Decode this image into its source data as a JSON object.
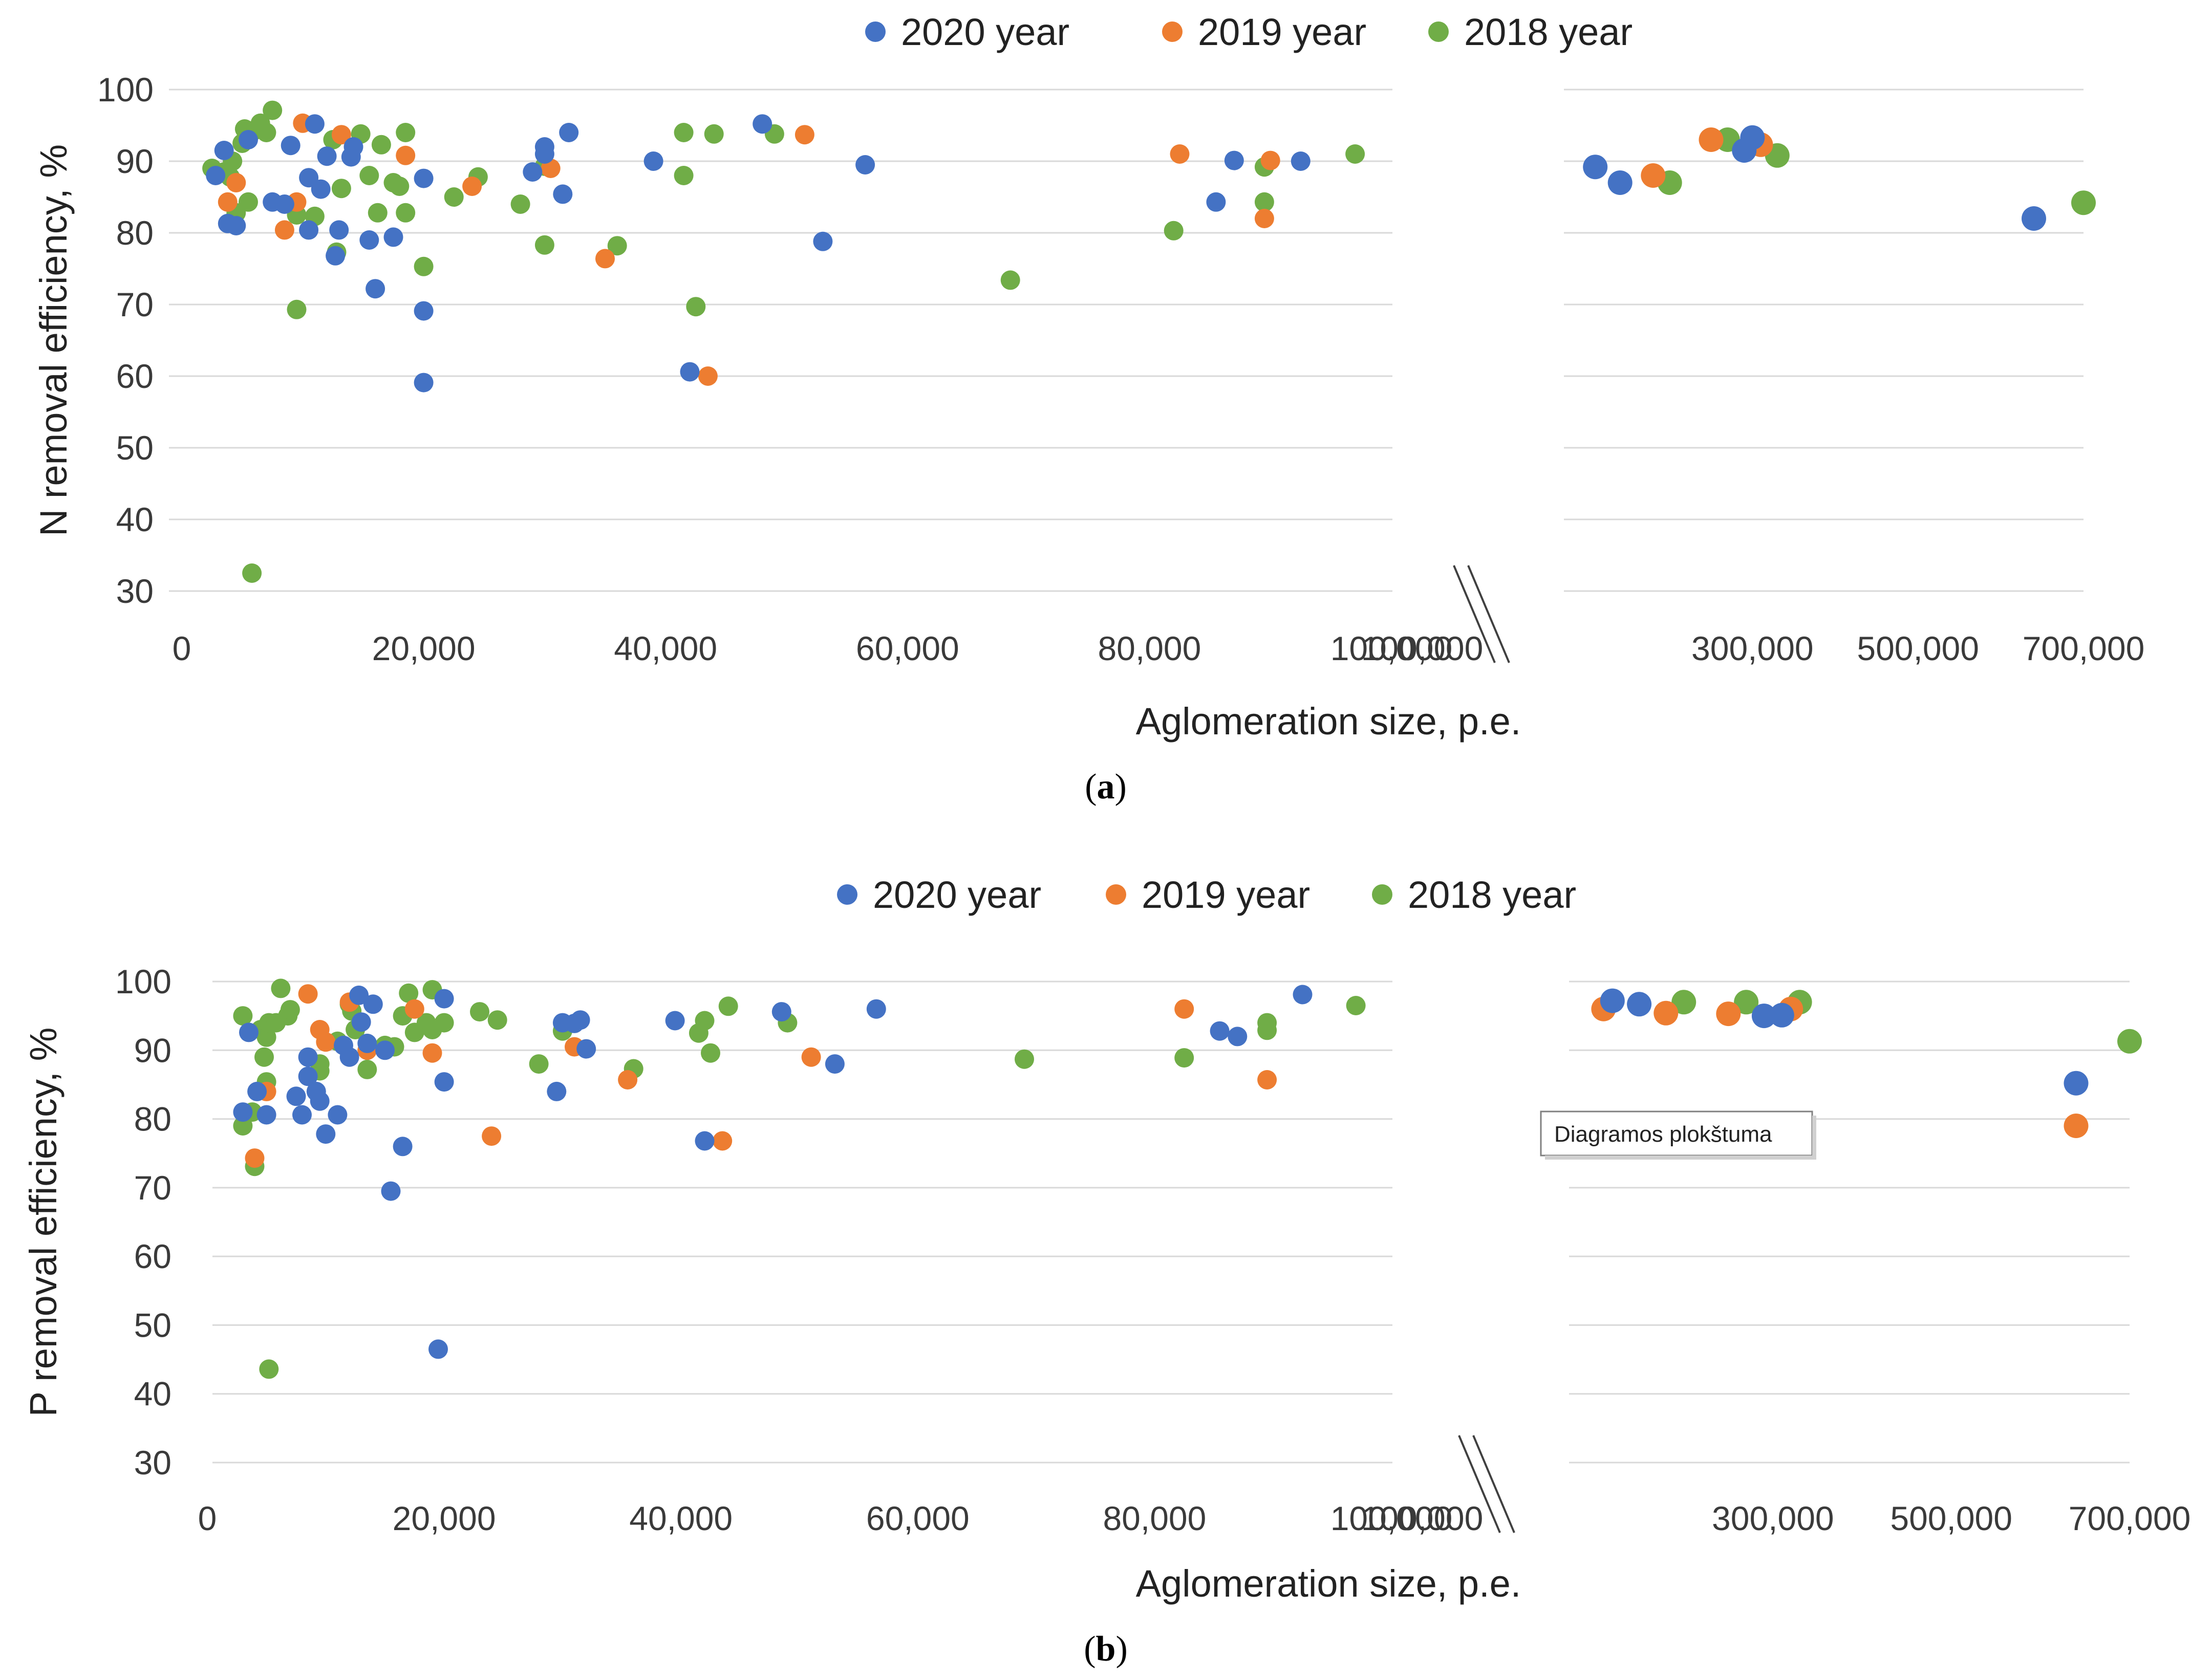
{
  "chart_data": [
    {
      "type": "scatter",
      "panel": "a",
      "caption": "a",
      "ylabel": "N removal efficiency, %",
      "xlabel": "Aglomeration size, p.e.",
      "ylim": [
        30,
        100
      ],
      "yticks": [
        "100",
        "90",
        "80",
        "70",
        "60",
        "50",
        "40",
        "30"
      ],
      "left_xlim": [
        0,
        100000
      ],
      "left_xticks": [
        "0",
        "20,000",
        "40,000",
        "60,000",
        "80,000",
        "100,000"
      ],
      "right_xlim": [
        100000,
        700000
      ],
      "right_xticks": [
        "100,000",
        "300,000",
        "500,000",
        "700,000"
      ],
      "legend": [
        "2020 year",
        "2019 year",
        "2018 year"
      ],
      "series": [
        {
          "name": "2020 year",
          "color": "#4472C4",
          "points": [
            [
              2800,
              88
            ],
            [
              3500,
              91.5
            ],
            [
              3800,
              81.3
            ],
            [
              4500,
              81
            ],
            [
              5500,
              93
            ],
            [
              7500,
              84.3
            ],
            [
              8500,
              84
            ],
            [
              9000,
              92.2
            ],
            [
              10500,
              80.4
            ],
            [
              10500,
              87.7
            ],
            [
              11000,
              95.2
            ],
            [
              11500,
              86.1
            ],
            [
              12000,
              90.7
            ],
            [
              12700,
              76.8
            ],
            [
              13000,
              80.4
            ],
            [
              14000,
              90.6
            ],
            [
              14200,
              92
            ],
            [
              15500,
              79
            ],
            [
              16000,
              72.2
            ],
            [
              17500,
              79.4
            ],
            [
              20000,
              87.6
            ],
            [
              20000,
              69.1
            ],
            [
              20000,
              59.1
            ],
            [
              29000,
              88.5
            ],
            [
              30000,
              92
            ],
            [
              30000,
              91
            ],
            [
              31500,
              85.4
            ],
            [
              32000,
              94
            ],
            [
              39000,
              90
            ],
            [
              42000,
              60.6
            ],
            [
              48000,
              95.2
            ],
            [
              53000,
              78.8
            ],
            [
              56500,
              89.5
            ],
            [
              85500,
              84.3
            ],
            [
              87000,
              90.1
            ],
            [
              92500,
              90
            ],
            [
              110000,
              89.2
            ],
            [
              140000,
              87
            ],
            [
              290000,
              91.5
            ],
            [
              300000,
              93.3
            ],
            [
              640000,
              82
            ]
          ]
        },
        {
          "name": "2019 year",
          "color": "#ED7D31",
          "points": [
            [
              3800,
              84.3
            ],
            [
              4500,
              87
            ],
            [
              8500,
              80.4
            ],
            [
              9500,
              84.3
            ],
            [
              10000,
              95.3
            ],
            [
              13200,
              93.7
            ],
            [
              18500,
              90.8
            ],
            [
              24000,
              86.5
            ],
            [
              30500,
              89
            ],
            [
              35000,
              76.4
            ],
            [
              43500,
              60
            ],
            [
              51500,
              93.7
            ],
            [
              82500,
              91
            ],
            [
              89500,
              82
            ],
            [
              90000,
              90.1
            ],
            [
              180000,
              88
            ],
            [
              250000,
              93
            ],
            [
              310000,
              92.3
            ]
          ]
        },
        {
          "name": "2018 year",
          "color": "#70AD47",
          "points": [
            [
              2500,
              89
            ],
            [
              3500,
              88.5
            ],
            [
              4000,
              87.8
            ],
            [
              4200,
              90
            ],
            [
              4500,
              82.8
            ],
            [
              5000,
              92.5
            ],
            [
              5200,
              94.5
            ],
            [
              5500,
              84.3
            ],
            [
              5800,
              32.5
            ],
            [
              6000,
              94.3
            ],
            [
              6500,
              95.3
            ],
            [
              7000,
              94
            ],
            [
              7500,
              97.1
            ],
            [
              9500,
              69.3
            ],
            [
              9500,
              82.5
            ],
            [
              11000,
              82.3
            ],
            [
              12500,
              93
            ],
            [
              12800,
              77.3
            ],
            [
              13200,
              86.2
            ],
            [
              14800,
              93.8
            ],
            [
              15500,
              88
            ],
            [
              16200,
              82.8
            ],
            [
              16500,
              92.3
            ],
            [
              17500,
              87
            ],
            [
              18000,
              86.5
            ],
            [
              18500,
              94
            ],
            [
              18500,
              82.8
            ],
            [
              20000,
              75.3
            ],
            [
              22500,
              85
            ],
            [
              24500,
              87.8
            ],
            [
              28000,
              84
            ],
            [
              30000,
              78.3
            ],
            [
              30000,
              89.3
            ],
            [
              36000,
              78.2
            ],
            [
              41500,
              94
            ],
            [
              41500,
              88
            ],
            [
              42500,
              69.7
            ],
            [
              44000,
              93.8
            ],
            [
              49000,
              93.8
            ],
            [
              68500,
              73.4
            ],
            [
              82000,
              80.3
            ],
            [
              89500,
              84.3
            ],
            [
              89500,
              89.2
            ],
            [
              97000,
              91
            ],
            [
              200000,
              87
            ],
            [
              270000,
              93
            ],
            [
              330000,
              90.8
            ],
            [
              700000,
              84.2
            ]
          ]
        }
      ]
    },
    {
      "type": "scatter",
      "panel": "b",
      "caption": "b",
      "ylabel": "P removal efficiency, %",
      "xlabel": "Aglomeration size, p.e.",
      "ylim": [
        30,
        100
      ],
      "yticks": [
        "100",
        "90",
        "80",
        "70",
        "60",
        "50",
        "40",
        "30"
      ],
      "left_xlim": [
        0,
        100000
      ],
      "left_xticks": [
        "0",
        "20,000",
        "40,000",
        "60,000",
        "80,000",
        "100,000"
      ],
      "right_xlim": [
        100000,
        700000
      ],
      "right_xticks": [
        "100,000",
        "300,000",
        "500,000",
        "700,000"
      ],
      "legend": [
        "2020 year",
        "2019 year",
        "2018 year"
      ],
      "series": [
        {
          "name": "2020 year",
          "color": "#4472C4",
          "points": [
            [
              3000,
              81
            ],
            [
              3500,
              92.6
            ],
            [
              4200,
              84
            ],
            [
              5000,
              80.6
            ],
            [
              7500,
              83.3
            ],
            [
              8000,
              80.6
            ],
            [
              8500,
              86.2
            ],
            [
              8500,
              89
            ],
            [
              9200,
              84
            ],
            [
              9500,
              82.6
            ],
            [
              10000,
              77.8
            ],
            [
              11000,
              80.6
            ],
            [
              11500,
              90.7
            ],
            [
              12000,
              89
            ],
            [
              12800,
              98
            ],
            [
              13000,
              94.1
            ],
            [
              13500,
              91
            ],
            [
              14000,
              96.7
            ],
            [
              15000,
              90
            ],
            [
              15500,
              69.5
            ],
            [
              16500,
              76
            ],
            [
              19500,
              46.5
            ],
            [
              20000,
              97.5
            ],
            [
              20000,
              85.4
            ],
            [
              29500,
              84
            ],
            [
              30000,
              94
            ],
            [
              31000,
              93.9
            ],
            [
              31500,
              94.4
            ],
            [
              32000,
              90.2
            ],
            [
              39500,
              94.3
            ],
            [
              42000,
              76.8
            ],
            [
              48500,
              95.6
            ],
            [
              53000,
              88
            ],
            [
              56500,
              96
            ],
            [
              85500,
              92.8
            ],
            [
              87000,
              92
            ],
            [
              92500,
              98.1
            ],
            [
              120000,
              97.2
            ],
            [
              150000,
              96.7
            ],
            [
              290000,
              95
            ],
            [
              310000,
              95.1
            ],
            [
              640000,
              85.2
            ]
          ]
        },
        {
          "name": "2019 year",
          "color": "#ED7D31",
          "points": [
            [
              4000,
              74.3
            ],
            [
              5000,
              84
            ],
            [
              8500,
              98.2
            ],
            [
              9500,
              93
            ],
            [
              10000,
              91.2
            ],
            [
              12000,
              97
            ],
            [
              13500,
              90
            ],
            [
              17500,
              96
            ],
            [
              19000,
              89.6
            ],
            [
              24000,
              77.5
            ],
            [
              31000,
              90.5
            ],
            [
              35500,
              85.7
            ],
            [
              43500,
              76.8
            ],
            [
              51000,
              89
            ],
            [
              82500,
              96
            ],
            [
              89500,
              85.7
            ],
            [
              110000,
              96
            ],
            [
              180000,
              95.4
            ],
            [
              250000,
              95.3
            ],
            [
              320000,
              96
            ],
            [
              640000,
              79
            ]
          ]
        },
        {
          "name": "2018 year",
          "color": "#70AD47",
          "points": [
            [
              3000,
              95
            ],
            [
              3000,
              79
            ],
            [
              3800,
              81
            ],
            [
              4000,
              73.1
            ],
            [
              4500,
              93
            ],
            [
              4800,
              89
            ],
            [
              5000,
              85.4
            ],
            [
              5000,
              91.9
            ],
            [
              5200,
              94
            ],
            [
              5200,
              43.6
            ],
            [
              5800,
              94
            ],
            [
              6200,
              99
            ],
            [
              6800,
              95
            ],
            [
              7000,
              95.9
            ],
            [
              9500,
              88
            ],
            [
              9500,
              87
            ],
            [
              11000,
              91.3
            ],
            [
              12000,
              96.7
            ],
            [
              12200,
              95.7
            ],
            [
              12500,
              93
            ],
            [
              13500,
              87.2
            ],
            [
              15000,
              90.7
            ],
            [
              15800,
              90.5
            ],
            [
              16500,
              95
            ],
            [
              17000,
              98.3
            ],
            [
              17500,
              92.6
            ],
            [
              18500,
              94
            ],
            [
              19000,
              98.8
            ],
            [
              19000,
              93
            ],
            [
              20000,
              94
            ],
            [
              23000,
              95.6
            ],
            [
              24500,
              94.4
            ],
            [
              28000,
              88
            ],
            [
              30000,
              92.8
            ],
            [
              36000,
              87.3
            ],
            [
              41500,
              92.5
            ],
            [
              42000,
              94.3
            ],
            [
              42500,
              89.6
            ],
            [
              44000,
              96.4
            ],
            [
              49000,
              94
            ],
            [
              69000,
              88.7
            ],
            [
              82500,
              88.9
            ],
            [
              89500,
              92.9
            ],
            [
              89500,
              94
            ],
            [
              97000,
              96.5
            ],
            [
              200000,
              97
            ],
            [
              270000,
              97
            ],
            [
              330000,
              97
            ],
            [
              700000,
              91.3
            ]
          ]
        }
      ]
    }
  ],
  "tooltip": "Diagramos plokštuma"
}
